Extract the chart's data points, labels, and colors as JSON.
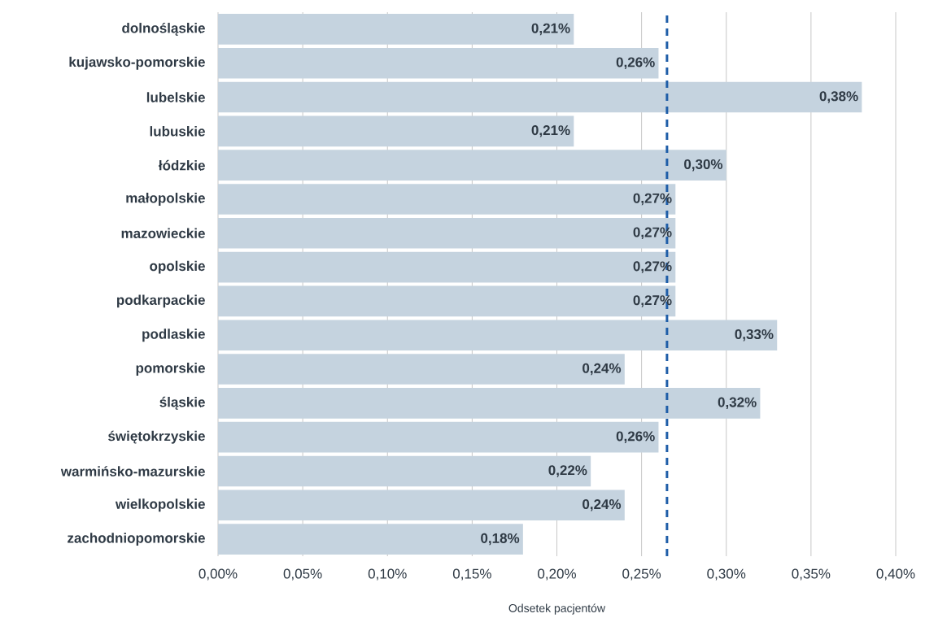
{
  "chart_data": {
    "type": "bar",
    "orientation": "horizontal",
    "xlabel": "Odsetek pacjentów",
    "categories": [
      "dolnośląskie",
      "kujawsko-pomorskie",
      "lubelskie",
      "lubuskie",
      "łódzkie",
      "małopolskie",
      "mazowieckie",
      "opolskie",
      "podkarpackie",
      "podlaskie",
      "pomorskie",
      "śląskie",
      "świętokrzyskie",
      "warmińsko-mazurskie",
      "wielkopolskie",
      "zachodniopomorskie"
    ],
    "values": [
      0.21,
      0.26,
      0.38,
      0.21,
      0.3,
      0.27,
      0.27,
      0.27,
      0.27,
      0.33,
      0.24,
      0.32,
      0.26,
      0.22,
      0.24,
      0.18
    ],
    "value_labels": [
      "0,21%",
      "0,26%",
      "0,38%",
      "0,21%",
      "0,30%",
      "0,27%",
      "0,27%",
      "0,27%",
      "0,27%",
      "0,33%",
      "0,24%",
      "0,32%",
      "0,26%",
      "0,22%",
      "0,24%",
      "0,18%"
    ],
    "color": "#c5d3df",
    "xlim": [
      0,
      0.4
    ],
    "xticks": [
      {
        "value": 0,
        "label": "0,00%"
      },
      {
        "value": 0.05,
        "label": "0,05%"
      },
      {
        "value": 0.1,
        "label": "0,10%"
      },
      {
        "value": 0.15,
        "label": "0,15%"
      },
      {
        "value": 0.2,
        "label": "0,20%"
      },
      {
        "value": 0.25,
        "label": "0,25%"
      },
      {
        "value": 0.3,
        "label": "0,30%"
      },
      {
        "value": 0.35,
        "label": "0,35%"
      },
      {
        "value": 0.4,
        "label": "0,40%"
      }
    ],
    "grid": "x",
    "ref_lines": [
      {
        "axis": "x",
        "value": 0.265,
        "color": "#1f5ea8",
        "line_style": "dashed"
      }
    ]
  }
}
